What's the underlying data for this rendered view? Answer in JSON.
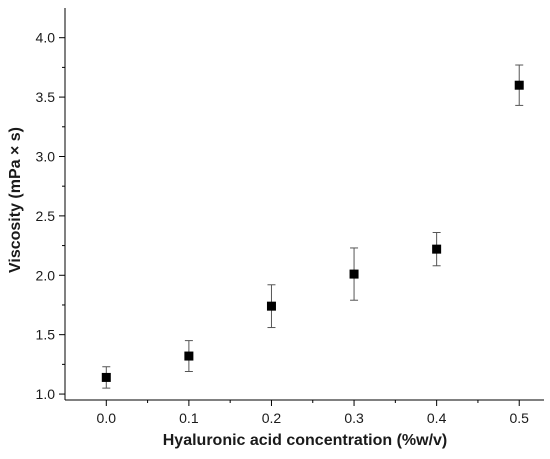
{
  "chart_data": {
    "type": "scatter",
    "xlabel": "Hyaluronic acid concentration (%w/v)",
    "ylabel": "Viscosity (mPa × s)",
    "xlim": [
      -0.05,
      0.53
    ],
    "ylim": [
      0.95,
      4.25
    ],
    "x_ticks": [
      "0.0",
      "0.1",
      "0.2",
      "0.3",
      "0.4",
      "0.5"
    ],
    "y_ticks": [
      "1.0",
      "1.5",
      "2.0",
      "2.5",
      "3.0",
      "3.5",
      "4.0"
    ],
    "grid": false,
    "marker": "square",
    "marker_color": "#000000",
    "points": [
      {
        "x": 0.0,
        "y": 1.14,
        "err": 0.09
      },
      {
        "x": 0.1,
        "y": 1.32,
        "err": 0.13
      },
      {
        "x": 0.2,
        "y": 1.74,
        "err": 0.18
      },
      {
        "x": 0.3,
        "y": 2.01,
        "err": 0.22
      },
      {
        "x": 0.4,
        "y": 2.22,
        "err": 0.14
      },
      {
        "x": 0.5,
        "y": 3.6,
        "err": 0.17
      }
    ]
  }
}
